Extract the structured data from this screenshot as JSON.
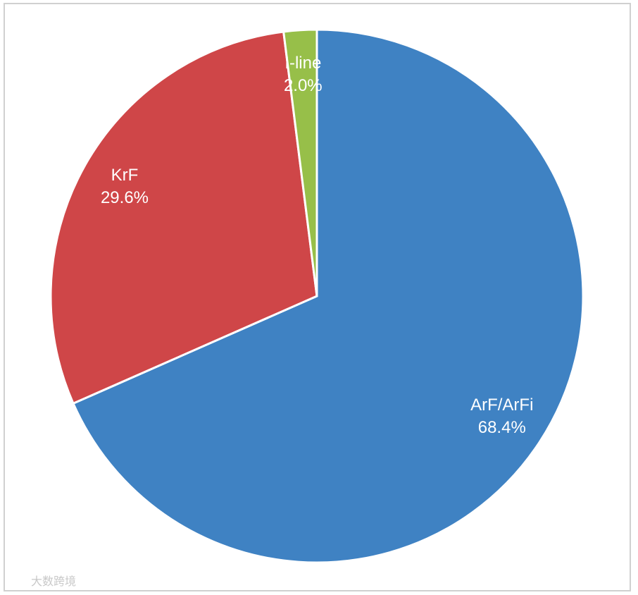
{
  "chart_data": {
    "type": "pie",
    "categories": [
      "ArF/ArFi",
      "KrF",
      "I-line"
    ],
    "values": [
      68.4,
      29.6,
      2.0
    ],
    "value_labels": [
      "68.4%",
      "29.6%",
      "2.0%"
    ],
    "colors": [
      "#3f82c3",
      "#cf4648",
      "#97bf49"
    ],
    "watermark": "大数跨境"
  }
}
